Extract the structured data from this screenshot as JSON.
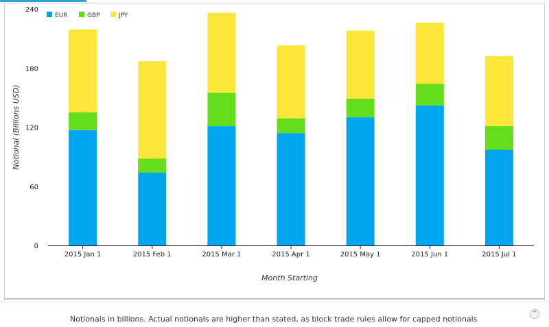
{
  "chart_data": {
    "type": "bar",
    "stacked": true,
    "categories": [
      "2015 Jan 1",
      "2015 Feb 1",
      "2015 Mar 1",
      "2015 Apr 1",
      "2015 May 1",
      "2015 Jun 1",
      "2015 Jul 1"
    ],
    "series": [
      {
        "name": "EUR",
        "color": "#00a5ef",
        "values": [
          117,
          74,
          121,
          114,
          130,
          142,
          97
        ]
      },
      {
        "name": "GBP",
        "color": "#66dd1a",
        "values": [
          18,
          14,
          34,
          15,
          19,
          22,
          24
        ]
      },
      {
        "name": "JPY",
        "color": "#fde63a",
        "values": [
          84,
          99,
          81,
          74,
          69,
          62,
          71
        ]
      }
    ],
    "xlabel": "Month Starting",
    "ylabel": "Notional (Billions USD)",
    "ylim": [
      0,
      240
    ],
    "yticks": [
      0,
      60,
      120,
      180,
      240
    ],
    "legend_position": "top-left",
    "grid": false
  },
  "footer": {
    "note": "Notionals in billions. Actual notionals are higher than stated, as block trade rules allow for capped notionals",
    "collapse_icon": "double-chevron-up-icon"
  }
}
